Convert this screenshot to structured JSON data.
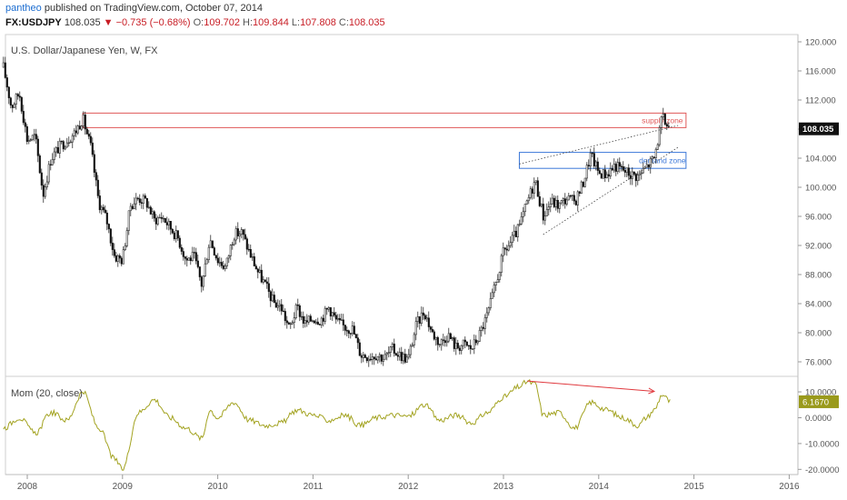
{
  "header": {
    "author": "pantheo",
    "published": "published on TradingView.com, October 07, 2014",
    "symbol": "FX:USDJPY",
    "last": "108.035",
    "change": "▼ −0.735 (−0.68%)",
    "open_label": "O:",
    "open": "109.702",
    "high_label": "H:",
    "high": "109.844",
    "low_label": "L:",
    "low": "107.808",
    "close_label": "C:",
    "close": "108.035"
  },
  "colors": {
    "candle_up": "#ffffff",
    "candle_down": "#111111",
    "supply_zone": "#e05a5a",
    "demand_zone": "#3c78d8",
    "momentum": "#a3a321",
    "divergence": "#e0393e",
    "last_price_tag": "#111111",
    "momentum_tag": "#9a9a1c"
  },
  "chart_data": [
    {
      "type": "candlestick",
      "title": "U.S. Dollar/Japanese Yen, W, FX",
      "ylim": [
        74,
        121
      ],
      "y_ticks": [
        "120.000",
        "116.000",
        "112.000",
        "108.000",
        "104.000",
        "100.000",
        "96.000",
        "92.000",
        "88.000",
        "84.000",
        "80.000",
        "76.000"
      ],
      "x_ticks": [
        "2008",
        "2009",
        "2010",
        "2011",
        "2012",
        "2013",
        "2014",
        "2015",
        "2016"
      ],
      "last_price_label": "108.035",
      "price_path": [
        [
          "2007-10",
          116.5
        ],
        [
          "2007-11",
          111.0
        ],
        [
          "2007-12",
          113.0
        ],
        [
          "2008-01",
          106.5
        ],
        [
          "2008-02",
          107.0
        ],
        [
          "2008-03",
          99.0
        ],
        [
          "2008-04",
          104.0
        ],
        [
          "2008-05",
          105.5
        ],
        [
          "2008-06",
          106.5
        ],
        [
          "2008-07",
          107.5
        ],
        [
          "2008-08",
          109.5
        ],
        [
          "2008-09",
          105.5
        ],
        [
          "2008-10",
          98.0
        ],
        [
          "2008-11",
          95.5
        ],
        [
          "2008-12",
          90.5
        ],
        [
          "2009-01",
          90.0
        ],
        [
          "2009-02",
          97.5
        ],
        [
          "2009-03",
          98.5
        ],
        [
          "2009-04",
          98.0
        ],
        [
          "2009-05",
          95.5
        ],
        [
          "2009-06",
          96.0
        ],
        [
          "2009-07",
          94.5
        ],
        [
          "2009-08",
          93.0
        ],
        [
          "2009-09",
          90.0
        ],
        [
          "2009-10",
          90.5
        ],
        [
          "2009-11",
          86.5
        ],
        [
          "2009-12",
          93.0
        ],
        [
          "2010-01",
          90.0
        ],
        [
          "2010-02",
          89.0
        ],
        [
          "2010-03",
          93.5
        ],
        [
          "2010-04",
          93.8
        ],
        [
          "2010-05",
          91.0
        ],
        [
          "2010-06",
          88.5
        ],
        [
          "2010-07",
          86.5
        ],
        [
          "2010-08",
          84.2
        ],
        [
          "2010-09",
          83.5
        ],
        [
          "2010-10",
          80.5
        ],
        [
          "2010-11",
          83.5
        ],
        [
          "2010-12",
          81.2
        ],
        [
          "2011-01",
          82.0
        ],
        [
          "2011-02",
          81.8
        ],
        [
          "2011-03",
          83.5
        ],
        [
          "2011-04",
          81.5
        ],
        [
          "2011-05",
          80.8
        ],
        [
          "2011-06",
          80.5
        ],
        [
          "2011-07",
          77.0
        ],
        [
          "2011-08",
          76.8
        ],
        [
          "2011-09",
          77.0
        ],
        [
          "2011-10",
          76.5
        ],
        [
          "2011-11",
          77.7
        ],
        [
          "2011-12",
          76.9
        ],
        [
          "2012-01",
          76.3
        ],
        [
          "2012-02",
          81.0
        ],
        [
          "2012-03",
          83.0
        ],
        [
          "2012-04",
          80.0
        ],
        [
          "2012-05",
          78.5
        ],
        [
          "2012-06",
          79.8
        ],
        [
          "2012-07",
          78.0
        ],
        [
          "2012-08",
          78.4
        ],
        [
          "2012-09",
          77.8
        ],
        [
          "2012-10",
          79.8
        ],
        [
          "2012-11",
          82.5
        ],
        [
          "2012-12",
          86.5
        ],
        [
          "2013-01",
          91.0
        ],
        [
          "2013-02",
          92.5
        ],
        [
          "2013-03",
          94.5
        ],
        [
          "2013-04",
          98.0
        ],
        [
          "2013-05",
          101.0
        ],
        [
          "2013-06",
          96.0
        ],
        [
          "2013-07",
          98.0
        ],
        [
          "2013-08",
          97.5
        ],
        [
          "2013-09",
          98.5
        ],
        [
          "2013-10",
          98.0
        ],
        [
          "2013-11",
          100.5
        ],
        [
          "2013-12",
          104.5
        ],
        [
          "2014-01",
          102.0
        ],
        [
          "2014-02",
          101.8
        ],
        [
          "2014-03",
          103.0
        ],
        [
          "2014-04",
          102.4
        ],
        [
          "2014-05",
          101.8
        ],
        [
          "2014-06",
          101.5
        ],
        [
          "2014-07",
          102.8
        ],
        [
          "2014-08",
          104.0
        ],
        [
          "2014-09",
          109.5
        ],
        [
          "2014-10",
          108.0
        ]
      ],
      "annotations": [
        {
          "type": "zone",
          "label": "supply zone",
          "from": "2008-08",
          "to": "2014-12",
          "y": [
            108.2,
            110.2
          ]
        },
        {
          "type": "zone",
          "label": "demand zone",
          "from": "2013-03",
          "to": "2014-12",
          "y": [
            102.6,
            104.8
          ]
        },
        {
          "type": "trendline",
          "style": "dotted",
          "points": [
            [
              "2013-03",
              103.2
            ],
            [
              "2014-11",
              108.5
            ]
          ]
        },
        {
          "type": "trendline",
          "style": "dotted",
          "points": [
            [
              "2013-06",
              93.5
            ],
            [
              "2014-11",
              105.5
            ]
          ]
        }
      ]
    },
    {
      "type": "line",
      "title": "Mom (20, close)",
      "ylim": [
        -22,
        16
      ],
      "y_ticks": [
        "10.0000",
        "0.0000",
        "-10.0000",
        "-20.0000"
      ],
      "last_value_label": "6.1670",
      "series": [
        {
          "values": [
            [
              "2007-10",
              -4.0
            ],
            [
              "2007-12",
              0.0
            ],
            [
              "2008-02",
              -6.0
            ],
            [
              "2008-04",
              2.0
            ],
            [
              "2008-06",
              -1.0
            ],
            [
              "2008-08",
              10.0
            ],
            [
              "2008-10",
              -4.0
            ],
            [
              "2008-12",
              -16.0
            ],
            [
              "2009-01",
              -20.0
            ],
            [
              "2009-03",
              2.0
            ],
            [
              "2009-05",
              7.0
            ],
            [
              "2009-07",
              0.0
            ],
            [
              "2009-09",
              -4.0
            ],
            [
              "2009-11",
              -8.0
            ],
            [
              "2009-12",
              3.0
            ],
            [
              "2010-01",
              0.0
            ],
            [
              "2010-03",
              6.0
            ],
            [
              "2010-05",
              -1.0
            ],
            [
              "2010-07",
              -3.0
            ],
            [
              "2010-09",
              -2.0
            ],
            [
              "2010-11",
              3.0
            ],
            [
              "2011-01",
              1.0
            ],
            [
              "2011-03",
              -1.0
            ],
            [
              "2011-05",
              1.0
            ],
            [
              "2011-07",
              -3.0
            ],
            [
              "2011-09",
              0.0
            ],
            [
              "2011-11",
              1.0
            ],
            [
              "2012-01",
              0.5
            ],
            [
              "2012-03",
              5.0
            ],
            [
              "2012-05",
              -1.0
            ],
            [
              "2012-07",
              1.0
            ],
            [
              "2012-09",
              -2.0
            ],
            [
              "2012-11",
              2.0
            ],
            [
              "2013-01",
              8.0
            ],
            [
              "2013-03",
              12.0
            ],
            [
              "2013-04",
              14.0
            ],
            [
              "2013-05",
              13.0
            ],
            [
              "2013-06",
              1.0
            ],
            [
              "2013-08",
              2.0
            ],
            [
              "2013-10",
              -4.0
            ],
            [
              "2013-12",
              6.0
            ],
            [
              "2014-02",
              3.0
            ],
            [
              "2014-04",
              0.0
            ],
            [
              "2014-06",
              -3.0
            ],
            [
              "2014-07",
              0.0
            ],
            [
              "2014-08",
              3.0
            ],
            [
              "2014-09",
              9.0
            ],
            [
              "2014-10",
              6.2
            ]
          ]
        }
      ],
      "annotations": [
        {
          "type": "divergence-arrow",
          "points": [
            [
              "2013-04",
              14.2
            ],
            [
              "2014-08",
              10.2
            ]
          ]
        }
      ]
    }
  ]
}
